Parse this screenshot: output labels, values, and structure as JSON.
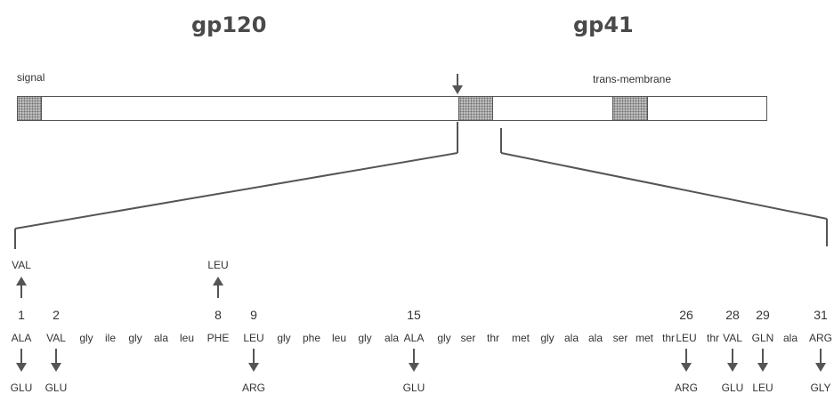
{
  "headings": {
    "left": "gp120",
    "right": "gp41"
  },
  "labels": {
    "signal": "signal",
    "transmembrane": "trans-membrane"
  },
  "sequence": [
    {
      "num": "1",
      "aa": "ALA",
      "up": "VAL",
      "down": "GLU"
    },
    {
      "num": "2",
      "aa": "VAL",
      "up": "",
      "down": "GLU"
    },
    {
      "num": "",
      "aa": "gly",
      "up": "",
      "down": ""
    },
    {
      "num": "",
      "aa": "ile",
      "up": "",
      "down": ""
    },
    {
      "num": "",
      "aa": "gly",
      "up": "",
      "down": ""
    },
    {
      "num": "",
      "aa": "ala",
      "up": "",
      "down": ""
    },
    {
      "num": "",
      "aa": "leu",
      "up": "",
      "down": ""
    },
    {
      "num": "8",
      "aa": "PHE",
      "up": "LEU",
      "down": ""
    },
    {
      "num": "9",
      "aa": "LEU",
      "up": "",
      "down": "ARG"
    },
    {
      "num": "",
      "aa": "gly",
      "up": "",
      "down": ""
    },
    {
      "num": "",
      "aa": "phe",
      "up": "",
      "down": ""
    },
    {
      "num": "",
      "aa": "leu",
      "up": "",
      "down": ""
    },
    {
      "num": "",
      "aa": "gly",
      "up": "",
      "down": ""
    },
    {
      "num": "",
      "aa": "ala",
      "up": "",
      "down": ""
    },
    {
      "num": "15",
      "aa": "ALA",
      "up": "",
      "down": "GLU"
    },
    {
      "num": "",
      "aa": "gly",
      "up": "",
      "down": ""
    },
    {
      "num": "",
      "aa": "ser",
      "up": "",
      "down": ""
    },
    {
      "num": "",
      "aa": "thr",
      "up": "",
      "down": ""
    },
    {
      "num": "",
      "aa": "met",
      "up": "",
      "down": ""
    },
    {
      "num": "",
      "aa": "gly",
      "up": "",
      "down": ""
    },
    {
      "num": "",
      "aa": "ala",
      "up": "",
      "down": ""
    },
    {
      "num": "",
      "aa": "ala",
      "up": "",
      "down": ""
    },
    {
      "num": "",
      "aa": "ser",
      "up": "",
      "down": ""
    },
    {
      "num": "",
      "aa": "met",
      "up": "",
      "down": ""
    },
    {
      "num": "",
      "aa": "thr",
      "up": "",
      "down": ""
    },
    {
      "num": "26",
      "aa": "LEU",
      "up": "",
      "down": "ARG"
    },
    {
      "num": "",
      "aa": "thr",
      "up": "",
      "down": ""
    },
    {
      "num": "28",
      "aa": "VAL",
      "up": "",
      "down": "GLU"
    },
    {
      "num": "29",
      "aa": "GLN",
      "up": "",
      "down": "LEU"
    },
    {
      "num": "",
      "aa": "ala",
      "up": "",
      "down": ""
    },
    {
      "num": "31",
      "aa": "ARG",
      "up": "",
      "down": "GLY"
    }
  ]
}
